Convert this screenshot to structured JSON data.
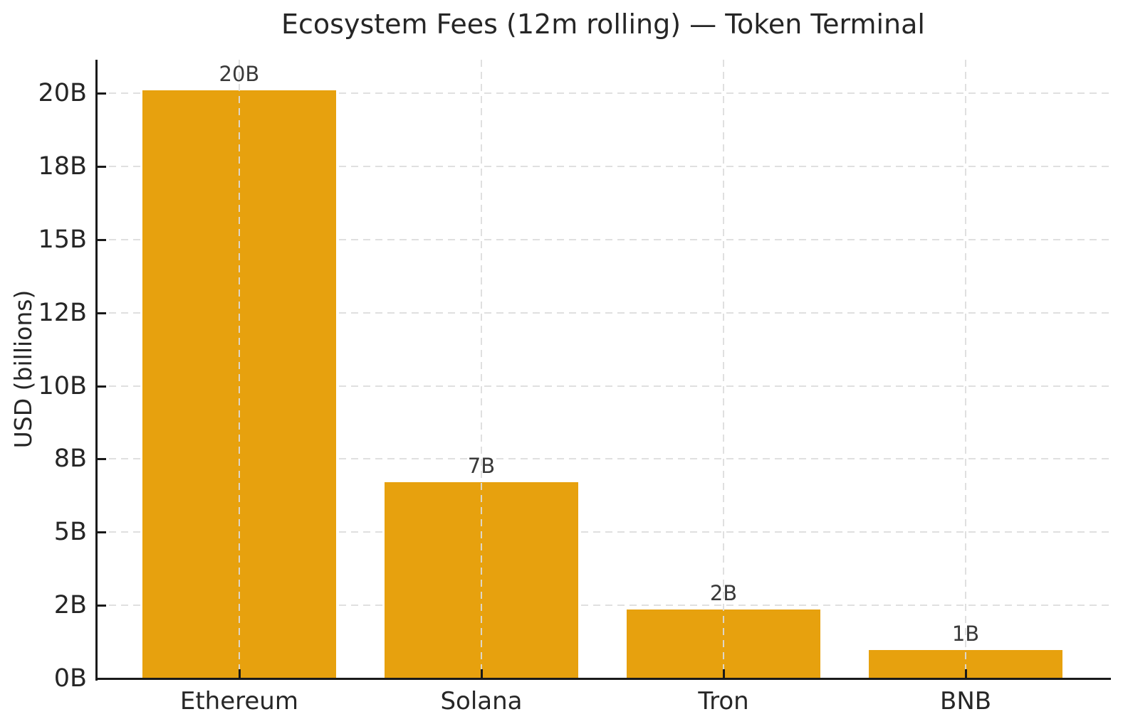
{
  "chart_data": {
    "type": "bar",
    "title": "Ecosystem Fees (12m rolling) — Token Terminal",
    "ylabel": "USD (billions)",
    "xlabel": "",
    "categories": [
      "Ethereum",
      "Solana",
      "Tron",
      "BNB"
    ],
    "values": [
      20.1,
      6.7,
      2.35,
      0.97
    ],
    "bar_labels": [
      "20B",
      "7B",
      "2B",
      "1B"
    ],
    "ylim": [
      0,
      21.15
    ],
    "yticks": [
      {
        "value": 0,
        "label": "0B"
      },
      {
        "value": 2.5,
        "label": "2B"
      },
      {
        "value": 5,
        "label": "5B"
      },
      {
        "value": 7.5,
        "label": "8B"
      },
      {
        "value": 10,
        "label": "10B"
      },
      {
        "value": 12.5,
        "label": "12B"
      },
      {
        "value": 15,
        "label": "15B"
      },
      {
        "value": 17.5,
        "label": "18B"
      },
      {
        "value": 20,
        "label": "20B"
      }
    ],
    "grid": {
      "style": "dashed",
      "horizontal": true,
      "vertical": true,
      "horizontal_behind_bars": true,
      "vertical_over_bars": true
    },
    "legend": "none",
    "colors": {
      "bar": "#E7A10E",
      "grid": "rgba(220,220,220,0.9)",
      "spine": "#1A1A1A",
      "text": "#262626",
      "bar_label_text": "#3A3A3A",
      "background": "#FFFFFF"
    }
  }
}
